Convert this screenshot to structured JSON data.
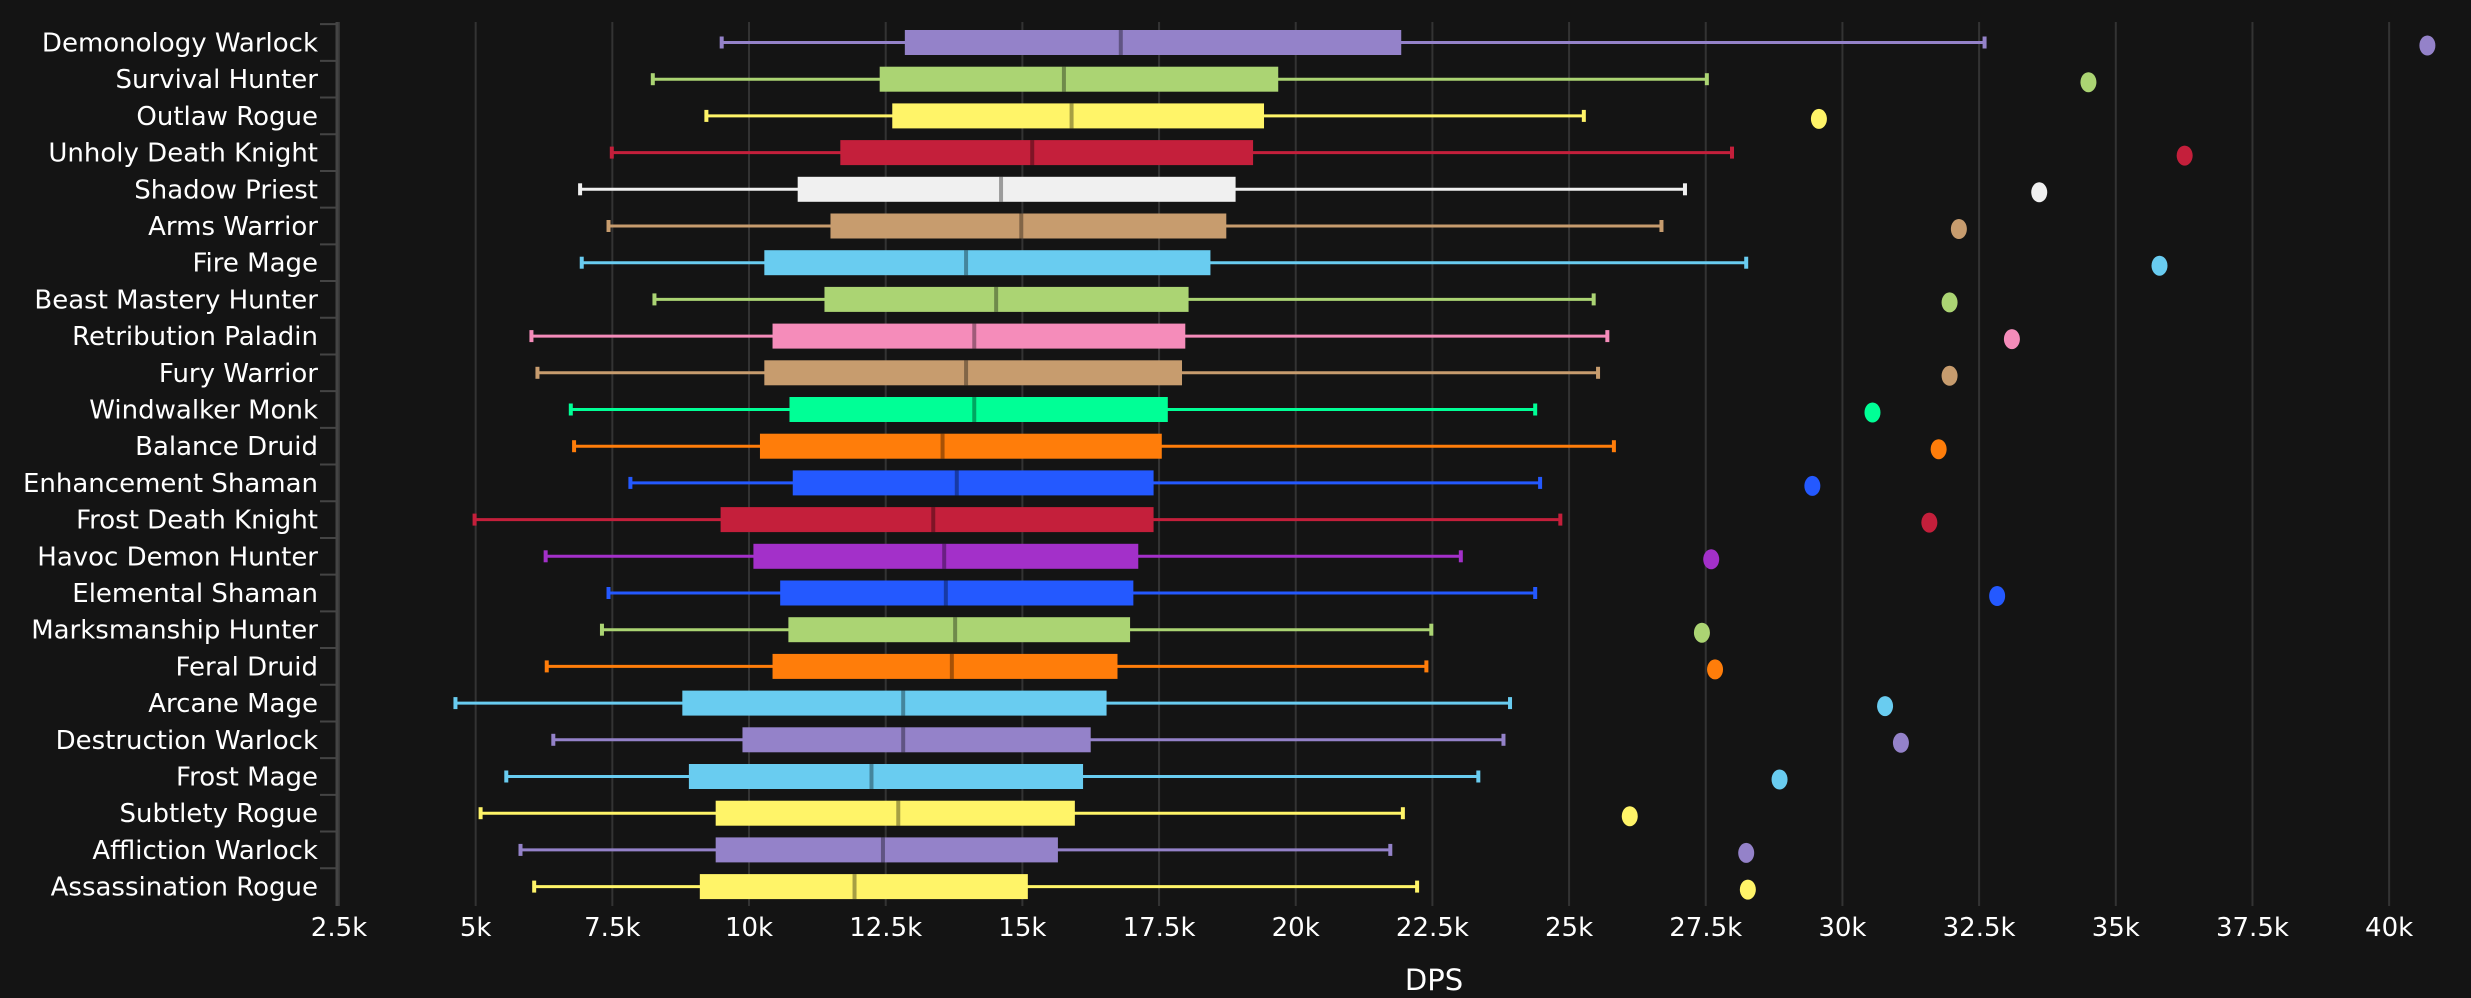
{
  "chart_data": {
    "type": "boxplot",
    "orientation": "horizontal",
    "xlabel": "DPS",
    "xlim": [
      2500,
      41500
    ],
    "x_ticks": [
      2500,
      5000,
      7500,
      10000,
      12500,
      15000,
      17500,
      20000,
      22500,
      25000,
      27500,
      30000,
      32500,
      35000,
      37500,
      40000
    ],
    "x_tick_labels": [
      "2.5k",
      "5k",
      "7.5k",
      "10k",
      "12.5k",
      "15k",
      "17.5k",
      "20k",
      "22.5k",
      "25k",
      "27.5k",
      "30k",
      "32.5k",
      "35k",
      "37.5k",
      "40k"
    ],
    "grid": "vertical",
    "series": [
      {
        "name": "Demonology Warlock",
        "color": "#9482c9",
        "min": 9500,
        "q1": 12850,
        "median": 16800,
        "q3": 21930,
        "max": 32600,
        "outlier": 40700
      },
      {
        "name": "Survival Hunter",
        "color": "#abd473",
        "min": 8240,
        "q1": 12390,
        "median": 15760,
        "q3": 19680,
        "max": 27520,
        "outlier": 34500
      },
      {
        "name": "Outlaw Rogue",
        "color": "#fff468",
        "min": 9220,
        "q1": 12620,
        "median": 15900,
        "q3": 19420,
        "max": 25270,
        "outlier": 29570
      },
      {
        "name": "Unholy Death Knight",
        "color": "#c41f3b",
        "min": 7490,
        "q1": 11670,
        "median": 15180,
        "q3": 19220,
        "max": 27980,
        "outlier": 36260
      },
      {
        "name": "Shadow Priest",
        "color": "#f0f0f0",
        "min": 6910,
        "q1": 10890,
        "median": 14610,
        "q3": 18900,
        "max": 27120,
        "outlier": 33600
      },
      {
        "name": "Arms Warrior",
        "color": "#c79c6e",
        "min": 7430,
        "q1": 11490,
        "median": 14980,
        "q3": 18730,
        "max": 26690,
        "outlier": 32130
      },
      {
        "name": "Fire Mage",
        "color": "#69ccf0",
        "min": 6940,
        "q1": 10280,
        "median": 13970,
        "q3": 18440,
        "max": 28240,
        "outlier": 35800
      },
      {
        "name": "Beast Mastery Hunter",
        "color": "#abd473",
        "min": 8270,
        "q1": 11380,
        "median": 14520,
        "q3": 18040,
        "max": 25450,
        "outlier": 31960
      },
      {
        "name": "Retribution Paladin",
        "color": "#f58cba",
        "min": 6020,
        "q1": 10430,
        "median": 14120,
        "q3": 17980,
        "max": 25700,
        "outlier": 33100
      },
      {
        "name": "Fury Warrior",
        "color": "#c79c6e",
        "min": 6130,
        "q1": 10280,
        "median": 13970,
        "q3": 17920,
        "max": 25530,
        "outlier": 31960
      },
      {
        "name": "Windwalker Monk",
        "color": "#00ff96",
        "min": 6740,
        "q1": 10740,
        "median": 14120,
        "q3": 17660,
        "max": 24380,
        "outlier": 30550
      },
      {
        "name": "Balance Druid",
        "color": "#ff7d0a",
        "min": 6800,
        "q1": 10200,
        "median": 13540,
        "q3": 17550,
        "max": 25820,
        "outlier": 31760
      },
      {
        "name": "Enhancement Shaman",
        "color": "#2459ff",
        "min": 7830,
        "q1": 10800,
        "median": 13800,
        "q3": 17400,
        "max": 24470,
        "outlier": 29450
      },
      {
        "name": "Frost Death Knight",
        "color": "#c41f3b",
        "min": 4980,
        "q1": 9480,
        "median": 13370,
        "q3": 17400,
        "max": 24840,
        "outlier": 31590
      },
      {
        "name": "Havoc Demon Hunter",
        "color": "#a330c9",
        "min": 6280,
        "q1": 10080,
        "median": 13570,
        "q3": 17120,
        "max": 23020,
        "outlier": 27600
      },
      {
        "name": "Elemental Shaman",
        "color": "#2459ff",
        "min": 7430,
        "q1": 10570,
        "median": 13600,
        "q3": 17030,
        "max": 24380,
        "outlier": 32830
      },
      {
        "name": "Marksmanship Hunter",
        "color": "#abd473",
        "min": 7310,
        "q1": 10720,
        "median": 13770,
        "q3": 16970,
        "max": 22480,
        "outlier": 27430
      },
      {
        "name": "Feral Druid",
        "color": "#ff7d0a",
        "min": 6300,
        "q1": 10430,
        "median": 13710,
        "q3": 16740,
        "max": 22390,
        "outlier": 27670
      },
      {
        "name": "Arcane Mage",
        "color": "#69ccf0",
        "min": 4630,
        "q1": 8780,
        "median": 12820,
        "q3": 16540,
        "max": 23920,
        "outlier": 30780
      },
      {
        "name": "Destruction Warlock",
        "color": "#9482c9",
        "min": 6420,
        "q1": 9880,
        "median": 12820,
        "q3": 16250,
        "max": 23800,
        "outlier": 31070
      },
      {
        "name": "Frost Mage",
        "color": "#69ccf0",
        "min": 5560,
        "q1": 8900,
        "median": 12240,
        "q3": 16110,
        "max": 23340,
        "outlier": 28850
      },
      {
        "name": "Subtlety Rogue",
        "color": "#fff468",
        "min": 5090,
        "q1": 9390,
        "median": 12730,
        "q3": 15960,
        "max": 21960,
        "outlier": 26110
      },
      {
        "name": "Affliction Warlock",
        "color": "#9482c9",
        "min": 5820,
        "q1": 9390,
        "median": 12450,
        "q3": 15650,
        "max": 21730,
        "outlier": 28240
      },
      {
        "name": "Assassination Rogue",
        "color": "#fff468",
        "min": 6070,
        "q1": 9100,
        "median": 11930,
        "q3": 15100,
        "max": 22220,
        "outlier": 28270
      }
    ]
  }
}
